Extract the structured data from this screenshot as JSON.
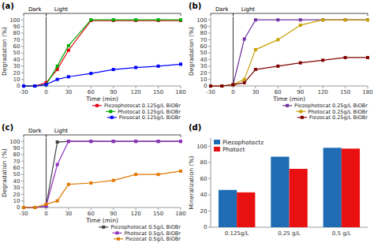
{
  "chart_data": [
    {
      "type": "line",
      "title": "(a)",
      "x": [
        -30,
        -15,
        0,
        15,
        30,
        60,
        90,
        120,
        150,
        180
      ],
      "series": [
        {
          "name": "Piezophotocat 0.125g/L BiOBr",
          "color": "#e8000d",
          "marker": "square",
          "values": [
            0,
            0,
            5,
            25,
            54,
            99,
            99,
            99,
            99,
            99
          ]
        },
        {
          "name": "Photocat 0.125g/L BiOBr",
          "color": "#00aa00",
          "marker": "square",
          "values": [
            0,
            0,
            2,
            30,
            61,
            100,
            100,
            100,
            100,
            100
          ]
        },
        {
          "name": "Piesocat 0.125g/L BiOBr",
          "color": "#0000ff",
          "marker": "square",
          "values": [
            0,
            0,
            2,
            10,
            14,
            19,
            25,
            28,
            30,
            33
          ]
        }
      ],
      "x_label": "Time (min)",
      "y_label": "Degradation (%)",
      "xlim": [
        -30,
        180
      ],
      "ylim": [
        0,
        105
      ],
      "xticks": [
        -30,
        0,
        30,
        60,
        90,
        120,
        150,
        180
      ],
      "yticks": [
        0,
        10,
        20,
        30,
        40,
        50,
        60,
        70,
        80,
        90,
        100
      ],
      "grid": false,
      "legend": "lower right",
      "annotations": [
        {
          "text": "Dark",
          "x": -15,
          "span": [
            -30,
            0
          ]
        },
        {
          "text": "Light",
          "x": 20,
          "span": [
            0,
            180
          ]
        },
        {
          "type": "vline",
          "x": 0
        }
      ]
    },
    {
      "type": "line",
      "title": "(b)",
      "x": [
        -30,
        -15,
        0,
        15,
        30,
        60,
        90,
        120,
        150,
        180
      ],
      "series": [
        {
          "name": "Piezophotocat 0.25g/L BiOBr",
          "color": "#7030a0",
          "marker": "square",
          "values": [
            0,
            0,
            2,
            71,
            100,
            100,
            100,
            100,
            100,
            100
          ]
        },
        {
          "name": "Photocat 0.25g/L BiOBr",
          "color": "#c8a000",
          "marker": "square",
          "values": [
            0,
            0,
            2,
            10,
            55,
            70,
            92,
            100,
            100,
            100
          ]
        },
        {
          "name": "Piezocat 0.25g/L BiOBr",
          "color": "#800000",
          "marker": "square",
          "values": [
            0,
            0,
            2,
            5,
            25,
            30,
            35,
            39,
            43,
            43
          ]
        }
      ],
      "x_label": "Time (min)",
      "y_label": "Degradation (%)",
      "xlim": [
        -30,
        180
      ],
      "ylim": [
        0,
        105
      ],
      "xticks": [
        -30,
        0,
        30,
        60,
        90,
        120,
        150,
        180
      ],
      "yticks": [
        0,
        10,
        20,
        30,
        40,
        50,
        60,
        70,
        80,
        90,
        100
      ],
      "grid": false,
      "legend": "lower right",
      "annotations": [
        {
          "text": "Dark",
          "x": -15,
          "span": [
            -30,
            0
          ]
        },
        {
          "text": "Light",
          "x": 20,
          "span": [
            0,
            180
          ]
        },
        {
          "type": "vline",
          "x": 0
        }
      ]
    },
    {
      "type": "line",
      "title": "(c)",
      "x": [
        -30,
        -15,
        0,
        15,
        30,
        60,
        90,
        120,
        150,
        180
      ],
      "series": [
        {
          "name": "Piezophotocat 0.5g/L BiOBr",
          "color": "#404040",
          "marker": "square",
          "values": [
            0,
            0,
            2,
            99,
            100,
            100,
            100,
            100,
            100,
            100
          ]
        },
        {
          "name": "Photocat 0.5g/L BiOBr",
          "color": "#9030c0",
          "marker": "square",
          "values": [
            0,
            0,
            2,
            65,
            100,
            100,
            100,
            100,
            100,
            100
          ]
        },
        {
          "name": "Piezocat 0.5g/L BiOBr",
          "color": "#e07800",
          "marker": "square",
          "values": [
            0,
            0,
            5,
            10,
            35,
            37,
            41,
            50,
            50,
            55
          ]
        }
      ],
      "x_label": "Time (min)",
      "y_label": "Degradation (%)",
      "xlim": [
        -30,
        180
      ],
      "ylim": [
        0,
        105
      ],
      "xticks": [
        -30,
        0,
        30,
        60,
        90,
        120,
        150,
        180
      ],
      "yticks": [
        0,
        10,
        20,
        30,
        40,
        50,
        60,
        70,
        80,
        90,
        100
      ],
      "grid": false,
      "legend": "lower right",
      "annotations": [
        {
          "text": "Dark",
          "x": -15,
          "span": [
            -30,
            0
          ]
        },
        {
          "text": "Light",
          "x": 20,
          "span": [
            0,
            180
          ]
        },
        {
          "type": "vline",
          "x": 0
        }
      ]
    },
    {
      "type": "bar",
      "title": "(d)",
      "categories": [
        "0.125g/L",
        "0,25 g/L",
        "0,5 g/L"
      ],
      "series": [
        {
          "name": "Piezophotoctz",
          "color": "#1f6cb5",
          "values": [
            46,
            87,
            98
          ]
        },
        {
          "name": "Photoct",
          "color": "#e81010",
          "values": [
            43,
            72,
            97
          ]
        }
      ],
      "y_label": "Mineralization (%)",
      "ylim": [
        0,
        110
      ],
      "yticks": [
        0,
        20,
        40,
        60,
        80,
        100
      ],
      "grid": false,
      "legend": "upper left"
    }
  ]
}
